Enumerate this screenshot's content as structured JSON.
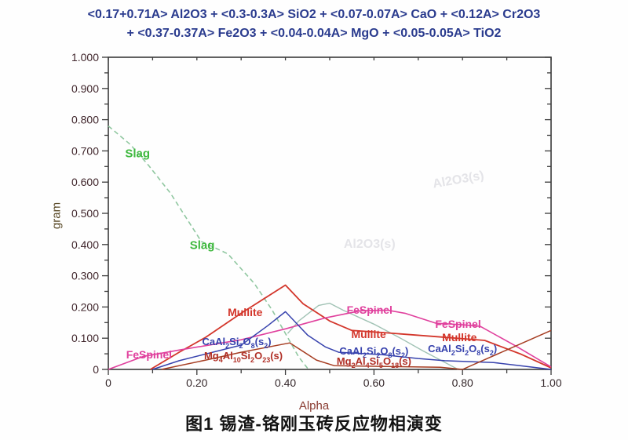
{
  "title": {
    "line1": "<0.17+0.71A> Al2O3 +  <0.3-0.3A> SiO2 +  <0.07-0.07A> CaO + <0.12A> Cr2O3",
    "line2": "+ <0.37-0.37A> Fe2O3 +  <0.04-0.04A> MgO +  <0.05-0.05A> TiO2"
  },
  "caption": "图1 锡渣-铬刚玉砖反应物相演变",
  "axes": {
    "x_label": "Alpha",
    "y_label": "gram",
    "x_tick_values": [
      0,
      0.2,
      0.4,
      0.6,
      0.8,
      1.0
    ],
    "x_tick_labels": [
      "0",
      "0.20",
      "0.40",
      "0.60",
      "0.80",
      "1.00"
    ],
    "x_minor_step": 0.1,
    "y_tick_values": [
      1.0,
      0.9,
      0.8,
      0.7,
      0.6,
      0.5,
      0.4,
      0.3,
      0.2,
      0.1,
      0
    ],
    "y_tick_labels": [
      "1.000",
      "0.900",
      "0.800",
      "0.700",
      "0.600",
      "0.500",
      "0.400",
      "0.300",
      "0.200",
      "0.100",
      "0"
    ],
    "y_minor_step": 0.05
  },
  "colors": {
    "title_blue": "#2a3b8e",
    "axis": "#3a3a3a",
    "slag_label_green": "#3db83d",
    "slag_line": "#90c7a0",
    "teal_line": "#a0c2b4",
    "mullite_red": "#d3362b",
    "fespinel_magenta": "#e0409d",
    "anorthite_blue": "#3742ad",
    "mg_dark_red": "#a63d22",
    "mg_label_red": "#b02f26",
    "watermark_gray": "#e4e4e8"
  },
  "chart_data": {
    "type": "line",
    "title": "<0.17+0.71A> Al2O3 + <0.3-0.3A> SiO2 + <0.07-0.07A> CaO + <0.12A> Cr2O3 + <0.37-0.37A> Fe2O3 + <0.04-0.04A> MgO + <0.05-0.05A> TiO2",
    "xlabel": "Alpha",
    "ylabel": "gram",
    "xlim": [
      0,
      1.0
    ],
    "ylim": [
      0,
      1.0
    ],
    "grid": false,
    "legend": "labels drawn next to curves",
    "series": [
      {
        "name": "Slag",
        "color_key": "slag_line",
        "dash": "6 4",
        "width": 1.6,
        "points": [
          [
            0,
            0.78
          ],
          [
            0.05,
            0.72
          ],
          [
            0.09,
            0.655
          ],
          [
            0.14,
            0.565
          ],
          [
            0.21,
            0.41
          ],
          [
            0.27,
            0.37
          ],
          [
            0.33,
            0.275
          ],
          [
            0.37,
            0.19
          ],
          [
            0.4,
            0.115
          ],
          [
            0.43,
            0.04
          ],
          [
            0.452,
            0
          ]
        ]
      },
      {
        "name": "",
        "color_key": "teal_line",
        "dash": "",
        "width": 1.4,
        "points": [
          [
            0.405,
            0.115
          ],
          [
            0.43,
            0.155
          ],
          [
            0.475,
            0.205
          ],
          [
            0.5,
            0.212
          ],
          [
            0.53,
            0.19
          ],
          [
            0.6,
            0.145
          ],
          [
            0.66,
            0.1
          ],
          [
            0.71,
            0.06
          ],
          [
            0.79,
            0
          ]
        ]
      },
      {
        "name": "Mullite",
        "color_key": "mullite_red",
        "dash": "",
        "width": 1.8,
        "points": [
          [
            0.095,
            0
          ],
          [
            0.16,
            0.055
          ],
          [
            0.22,
            0.103
          ],
          [
            0.3,
            0.18
          ],
          [
            0.4,
            0.27
          ],
          [
            0.44,
            0.21
          ],
          [
            0.5,
            0.155
          ],
          [
            0.55,
            0.125
          ],
          [
            0.62,
            0.118
          ],
          [
            0.74,
            0.105
          ],
          [
            0.85,
            0.093
          ],
          [
            0.93,
            0.05
          ],
          [
            1.0,
            0.005
          ]
        ]
      },
      {
        "name": "FeSpinel",
        "color_key": "fespinel_magenta",
        "dash": "",
        "width": 1.6,
        "points": [
          [
            0,
            0
          ],
          [
            0.08,
            0.042
          ],
          [
            0.16,
            0.062
          ],
          [
            0.3,
            0.095
          ],
          [
            0.4,
            0.13
          ],
          [
            0.49,
            0.165
          ],
          [
            0.57,
            0.188
          ],
          [
            0.63,
            0.19
          ],
          [
            0.67,
            0.18
          ],
          [
            0.74,
            0.148
          ],
          [
            0.8,
            0.143
          ],
          [
            0.84,
            0.138
          ],
          [
            0.92,
            0.075
          ],
          [
            1.0,
            0.008
          ]
        ]
      },
      {
        "name": "CaAl2Si2O8(s2)",
        "color_key": "anorthite_blue",
        "dash": "",
        "width": 1.5,
        "points": [
          [
            0.1,
            0
          ],
          [
            0.16,
            0.028
          ],
          [
            0.3,
            0.078
          ],
          [
            0.36,
            0.14
          ],
          [
            0.4,
            0.185
          ],
          [
            0.45,
            0.11
          ],
          [
            0.49,
            0.072
          ],
          [
            0.52,
            0.055
          ],
          [
            0.62,
            0.047
          ],
          [
            0.7,
            0.035
          ],
          [
            0.76,
            0.028
          ],
          [
            0.87,
            0.022
          ],
          [
            0.93,
            0.012
          ],
          [
            1.0,
            0
          ]
        ]
      },
      {
        "name": "Mg4Al10Si2O23(s)",
        "color_key": "mg_dark_red",
        "dash": "",
        "width": 1.5,
        "points": [
          [
            0.12,
            0
          ],
          [
            0.22,
            0.03
          ],
          [
            0.3,
            0.055
          ],
          [
            0.41,
            0.085
          ],
          [
            0.47,
            0.03
          ],
          [
            0.51,
            0.012
          ],
          [
            0.6,
            0.01
          ]
        ]
      },
      {
        "name": "Mg2Al4Si5O18(s)",
        "color_key": "mg_dark_red",
        "dash": "",
        "width": 1.5,
        "points": [
          [
            0.6,
            0.01
          ],
          [
            0.75,
            0.007
          ],
          [
            0.8,
            0
          ],
          [
            1.0,
            0.125
          ]
        ]
      }
    ]
  },
  "curve_labels": [
    {
      "text": "Slag",
      "color_key": "slag_label_green",
      "alpha": 0.066,
      "gram": 0.69,
      "size": 15
    },
    {
      "text": "Slag",
      "color_key": "slag_label_green",
      "alpha": 0.212,
      "gram": 0.397,
      "size": 15
    },
    {
      "text": "Mullite",
      "color_key": "mullite_red",
      "alpha": 0.309,
      "gram": 0.183,
      "size": 14
    },
    {
      "text": "FeSpinel",
      "color_key": "fespinel_magenta",
      "alpha": 0.092,
      "gram": 0.047,
      "size": 14
    },
    {
      "text": "CaAl_2Si_2O_8(s_2)",
      "color_key": "anorthite_blue",
      "alpha": 0.29,
      "gram": 0.085,
      "size": 13
    },
    {
      "text": "Mg_4Al_10Si_2O_23(s)",
      "color_key": "mg_label_red",
      "alpha": 0.305,
      "gram": 0.04,
      "size": 13
    },
    {
      "text": "FeSpinel",
      "color_key": "fespinel_magenta",
      "alpha": 0.59,
      "gram": 0.192,
      "size": 14
    },
    {
      "text": "Mullite",
      "color_key": "mullite_red",
      "alpha": 0.588,
      "gram": 0.114,
      "size": 14
    },
    {
      "text": "CaAl_2Si_2O_8(s_2)",
      "color_key": "anorthite_blue",
      "alpha": 0.6,
      "gram": 0.055,
      "size": 13
    },
    {
      "text": "Mg_2Al_4Si_5O_18(s)",
      "color_key": "mg_label_red",
      "alpha": 0.6,
      "gram": 0.022,
      "size": 13
    },
    {
      "text": "CaAl_2Si_2O_8(s_2)",
      "color_key": "anorthite_blue",
      "alpha": 0.8,
      "gram": 0.062,
      "size": 13
    },
    {
      "text": "FeSpinel",
      "color_key": "fespinel_magenta",
      "alpha": 0.79,
      "gram": 0.145,
      "size": 14
    },
    {
      "text": "Mullite",
      "color_key": "mullite_red",
      "alpha": 0.793,
      "gram": 0.104,
      "size": 14
    }
  ],
  "watermarks": [
    {
      "text": "Al2O3(s)",
      "alpha": 0.79,
      "gram": 0.605,
      "rotate": -10
    },
    {
      "text": "Al2O3(s)",
      "alpha": 0.59,
      "gram": 0.4,
      "rotate": 0
    }
  ]
}
